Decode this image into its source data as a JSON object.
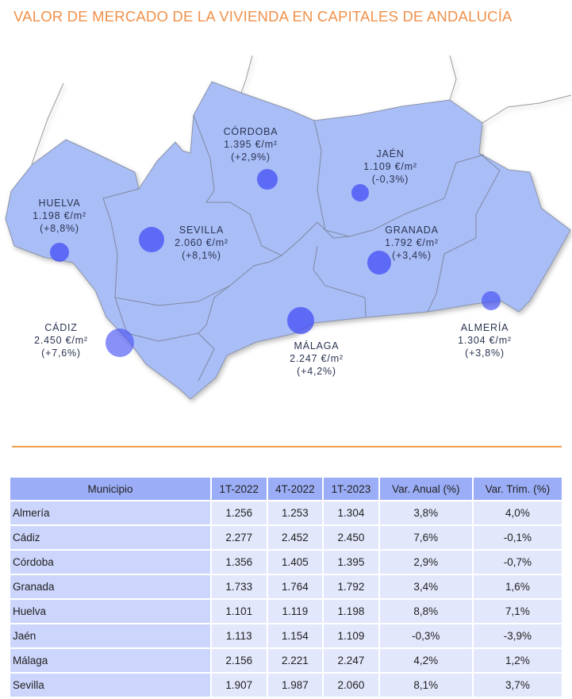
{
  "title": "VALOR DE MERCADO DE LA VIVIENDA EN CAPITALES DE ANDALUCÍA",
  "colors": {
    "accent": "#f0914a",
    "region": "#a9bdf7",
    "marker": "#4a55f5",
    "header": "#9badf6"
  },
  "map": {
    "labels": [
      {
        "name": "HUELVA",
        "price": "1.198 €/m²",
        "change": "(+8,8%)"
      },
      {
        "name": "SEVILLA",
        "price": "2.060 €/m²",
        "change": "(+8,1%)"
      },
      {
        "name": "CÓRDOBA",
        "price": "1.395 €/m²",
        "change": "(+2,9%)"
      },
      {
        "name": "JAÉN",
        "price": "1.109 €/m²",
        "change": "(-0,3%)"
      },
      {
        "name": "GRANADA",
        "price": "1.792 €/m²",
        "change": "(+3,4%)"
      },
      {
        "name": "CÁDIZ",
        "price": "2.450 €/m²",
        "change": "(+7,6%)"
      },
      {
        "name": "MÁLAGA",
        "price": "2.247 €/m²",
        "change": "(+4,2%)"
      },
      {
        "name": "ALMERÍA",
        "price": "1.304 €/m²",
        "change": "(+3,8%)"
      }
    ]
  },
  "table": {
    "headers": [
      "Municipio",
      "1T-2022",
      "4T-2022",
      "1T-2023",
      "Var. Anual (%)",
      "Var. Trim. (%)"
    ],
    "rows": [
      [
        "Almería",
        "1.256",
        "1.253",
        "1.304",
        "3,8%",
        "4,0%"
      ],
      [
        "Cádiz",
        "2.277",
        "2.452",
        "2.450",
        "7,6%",
        "-0,1%"
      ],
      [
        "Córdoba",
        "1.356",
        "1.405",
        "1.395",
        "2,9%",
        "-0,7%"
      ],
      [
        "Granada",
        "1.733",
        "1.764",
        "1.792",
        "3,4%",
        "1,6%"
      ],
      [
        "Huelva",
        "1.101",
        "1.119",
        "1.198",
        "8,8%",
        "7,1%"
      ],
      [
        "Jaén",
        "1.113",
        "1.154",
        "1.109",
        "-0,3%",
        "-3,9%"
      ],
      [
        "Málaga",
        "2.156",
        "2.221",
        "2.247",
        "4,2%",
        "1,2%"
      ],
      [
        "Sevilla",
        "1.907",
        "1.987",
        "2.060",
        "8,1%",
        "3,7%"
      ]
    ]
  }
}
